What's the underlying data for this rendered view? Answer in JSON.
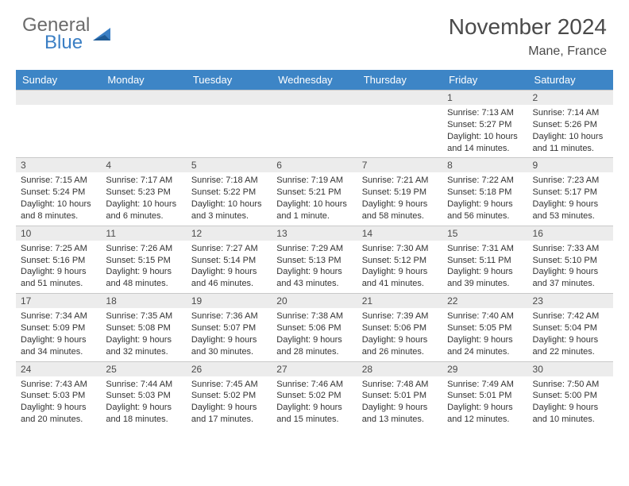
{
  "logo": {
    "word1": "General",
    "word2": "Blue"
  },
  "title": "November 2024",
  "location": "Mane, France",
  "colors": {
    "header_bg": "#3d85c6",
    "header_text": "#ffffff",
    "daynum_bg": "#ececec",
    "border": "#c9c9c9",
    "text": "#333333",
    "logo_gray": "#6b6b6b",
    "logo_blue": "#3b7fc4"
  },
  "weekdays": [
    "Sunday",
    "Monday",
    "Tuesday",
    "Wednesday",
    "Thursday",
    "Friday",
    "Saturday"
  ],
  "weeks": [
    [
      null,
      null,
      null,
      null,
      null,
      {
        "n": "1",
        "sr": "7:13 AM",
        "ss": "5:27 PM",
        "dl": "10 hours and 14 minutes."
      },
      {
        "n": "2",
        "sr": "7:14 AM",
        "ss": "5:26 PM",
        "dl": "10 hours and 11 minutes."
      }
    ],
    [
      {
        "n": "3",
        "sr": "7:15 AM",
        "ss": "5:24 PM",
        "dl": "10 hours and 8 minutes."
      },
      {
        "n": "4",
        "sr": "7:17 AM",
        "ss": "5:23 PM",
        "dl": "10 hours and 6 minutes."
      },
      {
        "n": "5",
        "sr": "7:18 AM",
        "ss": "5:22 PM",
        "dl": "10 hours and 3 minutes."
      },
      {
        "n": "6",
        "sr": "7:19 AM",
        "ss": "5:21 PM",
        "dl": "10 hours and 1 minute."
      },
      {
        "n": "7",
        "sr": "7:21 AM",
        "ss": "5:19 PM",
        "dl": "9 hours and 58 minutes."
      },
      {
        "n": "8",
        "sr": "7:22 AM",
        "ss": "5:18 PM",
        "dl": "9 hours and 56 minutes."
      },
      {
        "n": "9",
        "sr": "7:23 AM",
        "ss": "5:17 PM",
        "dl": "9 hours and 53 minutes."
      }
    ],
    [
      {
        "n": "10",
        "sr": "7:25 AM",
        "ss": "5:16 PM",
        "dl": "9 hours and 51 minutes."
      },
      {
        "n": "11",
        "sr": "7:26 AM",
        "ss": "5:15 PM",
        "dl": "9 hours and 48 minutes."
      },
      {
        "n": "12",
        "sr": "7:27 AM",
        "ss": "5:14 PM",
        "dl": "9 hours and 46 minutes."
      },
      {
        "n": "13",
        "sr": "7:29 AM",
        "ss": "5:13 PM",
        "dl": "9 hours and 43 minutes."
      },
      {
        "n": "14",
        "sr": "7:30 AM",
        "ss": "5:12 PM",
        "dl": "9 hours and 41 minutes."
      },
      {
        "n": "15",
        "sr": "7:31 AM",
        "ss": "5:11 PM",
        "dl": "9 hours and 39 minutes."
      },
      {
        "n": "16",
        "sr": "7:33 AM",
        "ss": "5:10 PM",
        "dl": "9 hours and 37 minutes."
      }
    ],
    [
      {
        "n": "17",
        "sr": "7:34 AM",
        "ss": "5:09 PM",
        "dl": "9 hours and 34 minutes."
      },
      {
        "n": "18",
        "sr": "7:35 AM",
        "ss": "5:08 PM",
        "dl": "9 hours and 32 minutes."
      },
      {
        "n": "19",
        "sr": "7:36 AM",
        "ss": "5:07 PM",
        "dl": "9 hours and 30 minutes."
      },
      {
        "n": "20",
        "sr": "7:38 AM",
        "ss": "5:06 PM",
        "dl": "9 hours and 28 minutes."
      },
      {
        "n": "21",
        "sr": "7:39 AM",
        "ss": "5:06 PM",
        "dl": "9 hours and 26 minutes."
      },
      {
        "n": "22",
        "sr": "7:40 AM",
        "ss": "5:05 PM",
        "dl": "9 hours and 24 minutes."
      },
      {
        "n": "23",
        "sr": "7:42 AM",
        "ss": "5:04 PM",
        "dl": "9 hours and 22 minutes."
      }
    ],
    [
      {
        "n": "24",
        "sr": "7:43 AM",
        "ss": "5:03 PM",
        "dl": "9 hours and 20 minutes."
      },
      {
        "n": "25",
        "sr": "7:44 AM",
        "ss": "5:03 PM",
        "dl": "9 hours and 18 minutes."
      },
      {
        "n": "26",
        "sr": "7:45 AM",
        "ss": "5:02 PM",
        "dl": "9 hours and 17 minutes."
      },
      {
        "n": "27",
        "sr": "7:46 AM",
        "ss": "5:02 PM",
        "dl": "9 hours and 15 minutes."
      },
      {
        "n": "28",
        "sr": "7:48 AM",
        "ss": "5:01 PM",
        "dl": "9 hours and 13 minutes."
      },
      {
        "n": "29",
        "sr": "7:49 AM",
        "ss": "5:01 PM",
        "dl": "9 hours and 12 minutes."
      },
      {
        "n": "30",
        "sr": "7:50 AM",
        "ss": "5:00 PM",
        "dl": "9 hours and 10 minutes."
      }
    ]
  ],
  "labels": {
    "sunrise": "Sunrise:",
    "sunset": "Sunset:",
    "daylight": "Daylight:"
  }
}
